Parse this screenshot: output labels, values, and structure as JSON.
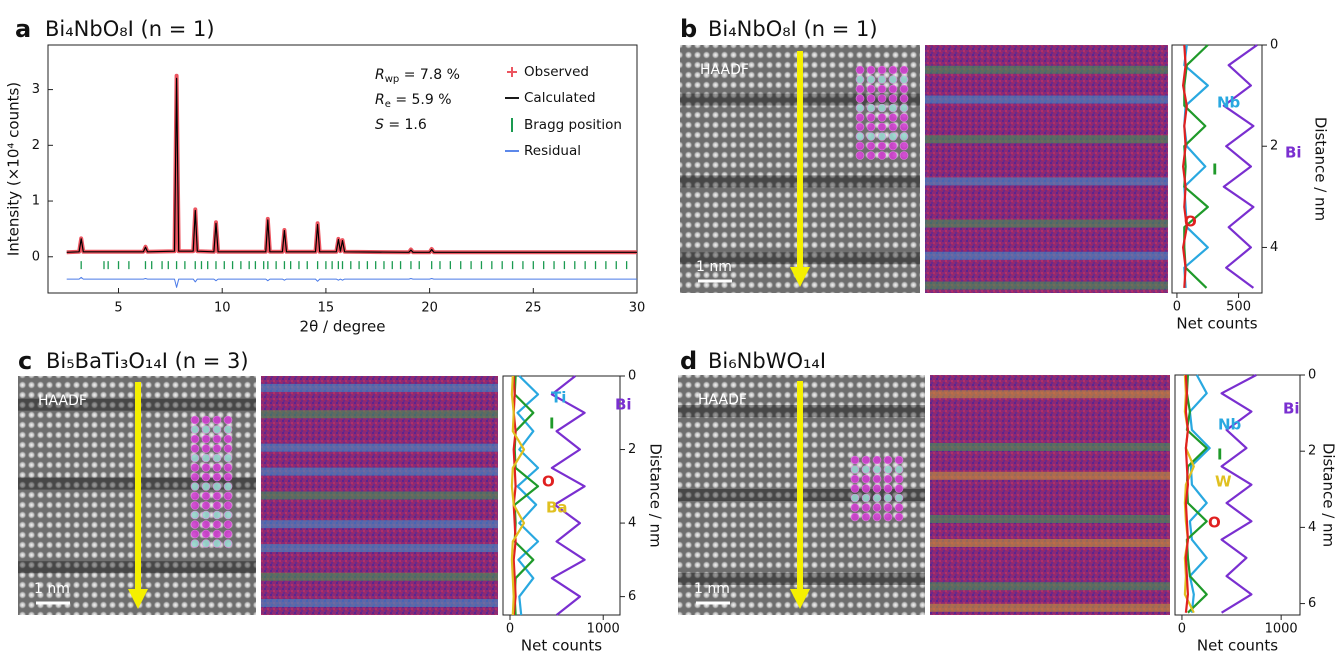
{
  "chart_data": [
    {
      "panel_label": "a",
      "type": "line",
      "title": "Bi₄NbO₈I  (n = 1)",
      "x_label": "2θ / degree",
      "y_label": "Intensity (×10⁴ counts)",
      "xlim": [
        1.6,
        30
      ],
      "xticks": [
        5,
        10,
        15,
        20,
        25,
        30
      ],
      "ylim": [
        -0.65,
        3.8
      ],
      "yticks": [
        0,
        1,
        2,
        3
      ],
      "x": [
        2.5,
        3.1,
        3.2,
        3.3,
        6.2,
        6.3,
        6.4,
        7.7,
        7.8,
        7.9,
        8.6,
        8.7,
        8.8,
        9.6,
        9.7,
        9.8,
        12.1,
        12.2,
        12.3,
        12.9,
        13.0,
        13.1,
        14.5,
        14.6,
        14.7,
        15.5,
        15.6,
        15.7,
        15.8,
        15.9,
        19.0,
        19.1,
        19.2,
        20.0,
        20.1,
        20.2,
        30
      ],
      "series": [
        {
          "name": "Observed",
          "color": "#ec5560",
          "values": [
            0.08,
            0.09,
            0.33,
            0.09,
            0.09,
            0.18,
            0.09,
            0.1,
            3.25,
            0.1,
            0.1,
            0.85,
            0.1,
            0.09,
            0.62,
            0.09,
            0.09,
            0.68,
            0.09,
            0.09,
            0.48,
            0.09,
            0.09,
            0.6,
            0.09,
            0.09,
            0.32,
            0.1,
            0.3,
            0.09,
            0.08,
            0.13,
            0.08,
            0.08,
            0.14,
            0.08,
            0.08
          ]
        },
        {
          "name": "Calculated",
          "color": "#000000",
          "values": [
            0.08,
            0.09,
            0.32,
            0.09,
            0.09,
            0.17,
            0.09,
            0.1,
            3.2,
            0.1,
            0.1,
            0.83,
            0.1,
            0.09,
            0.6,
            0.09,
            0.09,
            0.66,
            0.09,
            0.09,
            0.47,
            0.09,
            0.09,
            0.58,
            0.09,
            0.09,
            0.31,
            0.1,
            0.29,
            0.09,
            0.08,
            0.12,
            0.08,
            0.08,
            0.13,
            0.08,
            0.08
          ]
        },
        {
          "name": "Residual",
          "color": "#4a7ae8",
          "values": [
            -0.4,
            -0.4,
            -0.37,
            -0.4,
            -0.4,
            -0.39,
            -0.4,
            -0.4,
            -0.55,
            -0.4,
            -0.4,
            -0.45,
            -0.4,
            -0.4,
            -0.43,
            -0.4,
            -0.4,
            -0.43,
            -0.4,
            -0.4,
            -0.42,
            -0.4,
            -0.4,
            -0.44,
            -0.4,
            -0.4,
            -0.42,
            -0.4,
            -0.42,
            -0.4,
            -0.4,
            -0.39,
            -0.4,
            -0.4,
            -0.39,
            -0.4,
            -0.4
          ]
        }
      ],
      "bragg": {
        "name": "Bragg position",
        "color": "#1a9a50",
        "level": -0.15,
        "positions": [
          3.2,
          4.3,
          4.5,
          5.0,
          5.5,
          6.3,
          6.6,
          7.1,
          7.4,
          7.8,
          8.2,
          8.7,
          9.0,
          9.3,
          9.7,
          10.1,
          10.5,
          10.9,
          11.3,
          11.6,
          12.0,
          12.2,
          12.6,
          13.0,
          13.3,
          13.7,
          14.1,
          14.6,
          15.0,
          15.3,
          15.6,
          15.8,
          16.2,
          16.6,
          17.0,
          17.4,
          17.8,
          18.2,
          18.6,
          19.1,
          19.5,
          20.1,
          20.5,
          21.0,
          21.5,
          22.0,
          22.5,
          23.0,
          23.5,
          24.0,
          24.5,
          25.0,
          25.5,
          26.0,
          26.5,
          27.0,
          27.5,
          28.0,
          28.5,
          29.0,
          29.5
        ]
      },
      "annotations": [
        {
          "symbol": "R",
          "subscript": "wp",
          "text": " = 7.8 %"
        },
        {
          "symbol": "R",
          "subscript": "e",
          "text": " =  5.9 %"
        },
        {
          "symbol": "S",
          "text": " =  1.6"
        }
      ]
    },
    {
      "panel_label": "b",
      "type": "profile",
      "title": "Bi₄NbO₈I (n = 1)",
      "image_labels": {
        "modality": "HAADF",
        "scale_bar": "1 nm"
      },
      "x_label": "Net counts",
      "y_label": "Distance / nm",
      "y_inverted": true,
      "xlim": [
        -40,
        690
      ],
      "xticks": [
        0,
        500
      ],
      "ylim": [
        0,
        4.9
      ],
      "yticks": [
        0,
        2,
        4
      ],
      "y": [
        0,
        0.4,
        0.8,
        1.2,
        1.6,
        2.0,
        2.4,
        2.8,
        3.2,
        3.6,
        4.0,
        4.4,
        4.8
      ],
      "series": [
        {
          "name": "Bi",
          "color": "#7a2fd0",
          "values": [
            650,
            420,
            600,
            380,
            620,
            400,
            600,
            380,
            620,
            420,
            600,
            400,
            620
          ]
        },
        {
          "name": "Nb",
          "color": "#29a8e0",
          "values": [
            80,
            60,
            250,
            70,
            60,
            80,
            230,
            60,
            70,
            80,
            250,
            60,
            70
          ]
        },
        {
          "name": "I",
          "color": "#1f9a2a",
          "values": [
            250,
            80,
            60,
            60,
            230,
            60,
            70,
            60,
            250,
            60,
            60,
            70,
            240
          ]
        },
        {
          "name": "O",
          "color": "#e02020",
          "values": [
            60,
            70,
            50,
            80,
            60,
            70,
            50,
            70,
            60,
            80,
            50,
            70,
            60
          ]
        }
      ]
    },
    {
      "panel_label": "c",
      "type": "profile",
      "title": "Bi₅BaTi₃O₁₄I (n = 3)",
      "image_labels": {
        "modality": "HAADF",
        "scale_bar": "1 nm"
      },
      "x_label": "Net counts",
      "y_label": "Distance / nm",
      "y_inverted": true,
      "xlim": [
        -75,
        1180
      ],
      "xticks": [
        0,
        1000
      ],
      "ylim": [
        0,
        6.5
      ],
      "yticks": [
        0,
        2,
        4,
        6
      ],
      "y": [
        0,
        0.5,
        1.0,
        1.5,
        2.0,
        2.5,
        3.0,
        3.5,
        4.0,
        4.5,
        5.0,
        5.5,
        6.0,
        6.5
      ],
      "series": [
        {
          "name": "Bi",
          "color": "#7a2fd0",
          "values": [
            700,
            450,
            800,
            500,
            750,
            450,
            800,
            480,
            750,
            500,
            800,
            450,
            750,
            500
          ]
        },
        {
          "name": "Ti",
          "color": "#29a8e0",
          "values": [
            100,
            300,
            80,
            250,
            100,
            300,
            80,
            280,
            100,
            300,
            90,
            250,
            100,
            120
          ]
        },
        {
          "name": "I",
          "color": "#1f9a2a",
          "values": [
            60,
            50,
            250,
            60,
            50,
            60,
            300,
            50,
            60,
            50,
            250,
            60,
            50,
            60
          ]
        },
        {
          "name": "O",
          "color": "#e02020",
          "values": [
            40,
            50,
            40,
            60,
            40,
            50,
            60,
            40,
            50,
            60,
            40,
            50,
            60,
            40
          ]
        },
        {
          "name": "Ba",
          "color": "#e0c020",
          "values": [
            30,
            20,
            40,
            30,
            150,
            30,
            20,
            40,
            150,
            30,
            20,
            30,
            40,
            30
          ]
        }
      ]
    },
    {
      "panel_label": "d",
      "type": "profile",
      "title": "Bi₆NbWO₁₄I",
      "image_labels": {
        "modality": "HAADF",
        "scale_bar": "1 nm"
      },
      "x_label": "Net counts",
      "y_label": "Distance / nm",
      "y_inverted": true,
      "xlim": [
        -70,
        1190
      ],
      "xticks": [
        0,
        1000
      ],
      "ylim": [
        0,
        6.3
      ],
      "yticks": [
        0,
        2,
        4,
        6
      ],
      "y": [
        0,
        0.48,
        0.96,
        1.44,
        1.92,
        2.4,
        2.88,
        3.36,
        3.84,
        4.32,
        4.8,
        5.28,
        5.76,
        6.24
      ],
      "series": [
        {
          "name": "Bi",
          "color": "#7a2fd0",
          "values": [
            750,
            400,
            700,
            450,
            650,
            400,
            700,
            450,
            700,
            400,
            650,
            450,
            700,
            400
          ]
        },
        {
          "name": "Nb",
          "color": "#29a8e0",
          "values": [
            150,
            250,
            80,
            100,
            280,
            90,
            100,
            250,
            80,
            100,
            250,
            80,
            120,
            100
          ]
        },
        {
          "name": "I",
          "color": "#1f9a2a",
          "values": [
            60,
            50,
            80,
            50,
            250,
            60,
            50,
            60,
            250,
            50,
            60,
            80,
            250,
            60
          ]
        },
        {
          "name": "W",
          "color": "#e0c020",
          "values": [
            30,
            40,
            30,
            60,
            40,
            120,
            40,
            30,
            40,
            60,
            30,
            40,
            30,
            120
          ]
        },
        {
          "name": "O",
          "color": "#e02020",
          "values": [
            40,
            50,
            40,
            60,
            40,
            50,
            60,
            40,
            50,
            60,
            40,
            50,
            60,
            40
          ]
        }
      ]
    }
  ]
}
